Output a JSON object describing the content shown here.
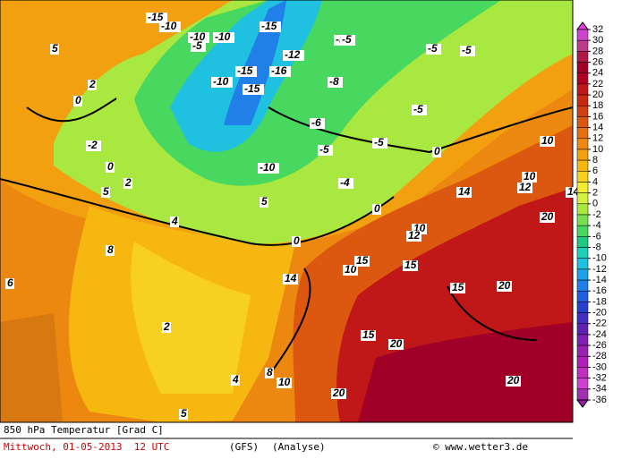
{
  "map": {
    "title": "850 hPa Temperatur [Grad C]",
    "date": "Mittwoch, 01-05-2013  12 UTC",
    "model": "(GFS)",
    "run": "(Analyse)",
    "copyright": "© www.wetter3.de",
    "legend": {
      "ticks": [
        32,
        30,
        28,
        26,
        24,
        22,
        20,
        18,
        16,
        14,
        12,
        10,
        8,
        6,
        4,
        2,
        0,
        -2,
        -4,
        -6,
        -8,
        -10,
        -12,
        -14,
        -16,
        -18,
        -20,
        -22,
        -24,
        -26,
        -28,
        -30,
        -32,
        -34,
        -36
      ],
      "colors": [
        "#e040e0",
        "#cc44cc",
        "#c03a8a",
        "#b01848",
        "#a00028",
        "#b00022",
        "#c01818",
        "#c82a10",
        "#d04010",
        "#dc5810",
        "#e47010",
        "#ec8810",
        "#f2a010",
        "#f6b810",
        "#f8d020",
        "#f4ec30",
        "#d4f040",
        "#a8e840",
        "#78e050",
        "#48d860",
        "#20c880",
        "#20d0b8",
        "#20c0e0",
        "#20a0e8",
        "#2080e8",
        "#2060e0",
        "#2840d0",
        "#4430c0",
        "#6020b0",
        "#8020b0",
        "#9c20b0",
        "#b020b8",
        "#c030c0",
        "#d040d0",
        "#a030b0",
        "#9020a0"
      ]
    },
    "contour_labels": [
      "-15",
      "-10",
      "-10",
      "-10",
      "-5",
      "-5",
      "-15",
      "-15",
      "-15",
      "-10",
      "-10",
      "-5",
      "-5",
      "-5",
      "-5",
      "-5",
      "-5",
      "0",
      "0",
      "0",
      "0",
      "0",
      "5",
      "5",
      "5",
      "5",
      "10",
      "10",
      "10",
      "10",
      "15",
      "15",
      "15",
      "15",
      "20",
      "20",
      "20",
      "20",
      "20",
      "10",
      "-16",
      "-12",
      "-8",
      "-6",
      "-4",
      "-2",
      "2",
      "2",
      "2",
      "4",
      "4",
      "6",
      "8",
      "8",
      "12",
      "12",
      "14",
      "14",
      "14"
    ]
  }
}
